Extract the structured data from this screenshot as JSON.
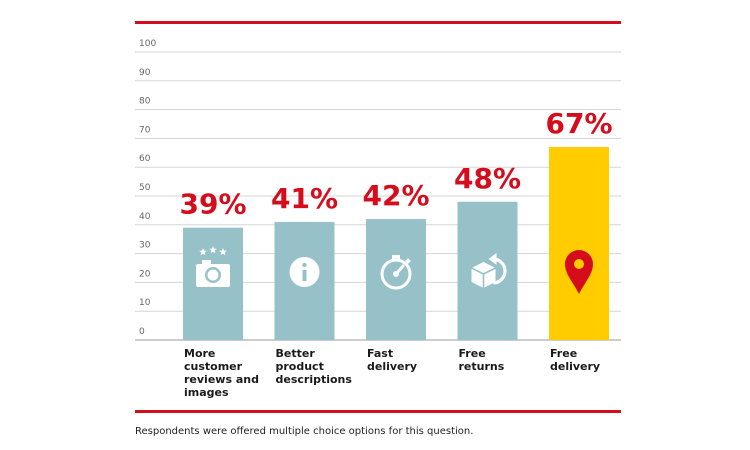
{
  "chart_data": {
    "type": "bar",
    "categories": [
      [
        "More",
        "customer",
        "reviews and",
        "images"
      ],
      [
        "Better",
        "product",
        "descriptions"
      ],
      [
        "Fast",
        "delivery"
      ],
      [
        "Free",
        "returns"
      ],
      [
        "Free",
        "delivery"
      ]
    ],
    "values": [
      39,
      41,
      42,
      48,
      67
    ],
    "value_labels": [
      "39%",
      "41%",
      "42%",
      "48%",
      "67%"
    ],
    "icons": [
      "camera-stars-icon",
      "info-icon",
      "stopwatch-icon",
      "return-box-icon",
      "location-pin-icon"
    ],
    "bar_colors": [
      "#97c1c9",
      "#97c1c9",
      "#97c1c9",
      "#97c1c9",
      "#ffcc00"
    ],
    "yticks": [
      0,
      10,
      20,
      30,
      40,
      50,
      60,
      70,
      80,
      90,
      100
    ],
    "ylim": [
      0,
      100
    ],
    "grid": true,
    "value_label_color": "#d50c1c",
    "rule_color": "#d50c1c"
  },
  "footnote": "Respondents were offered multiple choice options for this question."
}
